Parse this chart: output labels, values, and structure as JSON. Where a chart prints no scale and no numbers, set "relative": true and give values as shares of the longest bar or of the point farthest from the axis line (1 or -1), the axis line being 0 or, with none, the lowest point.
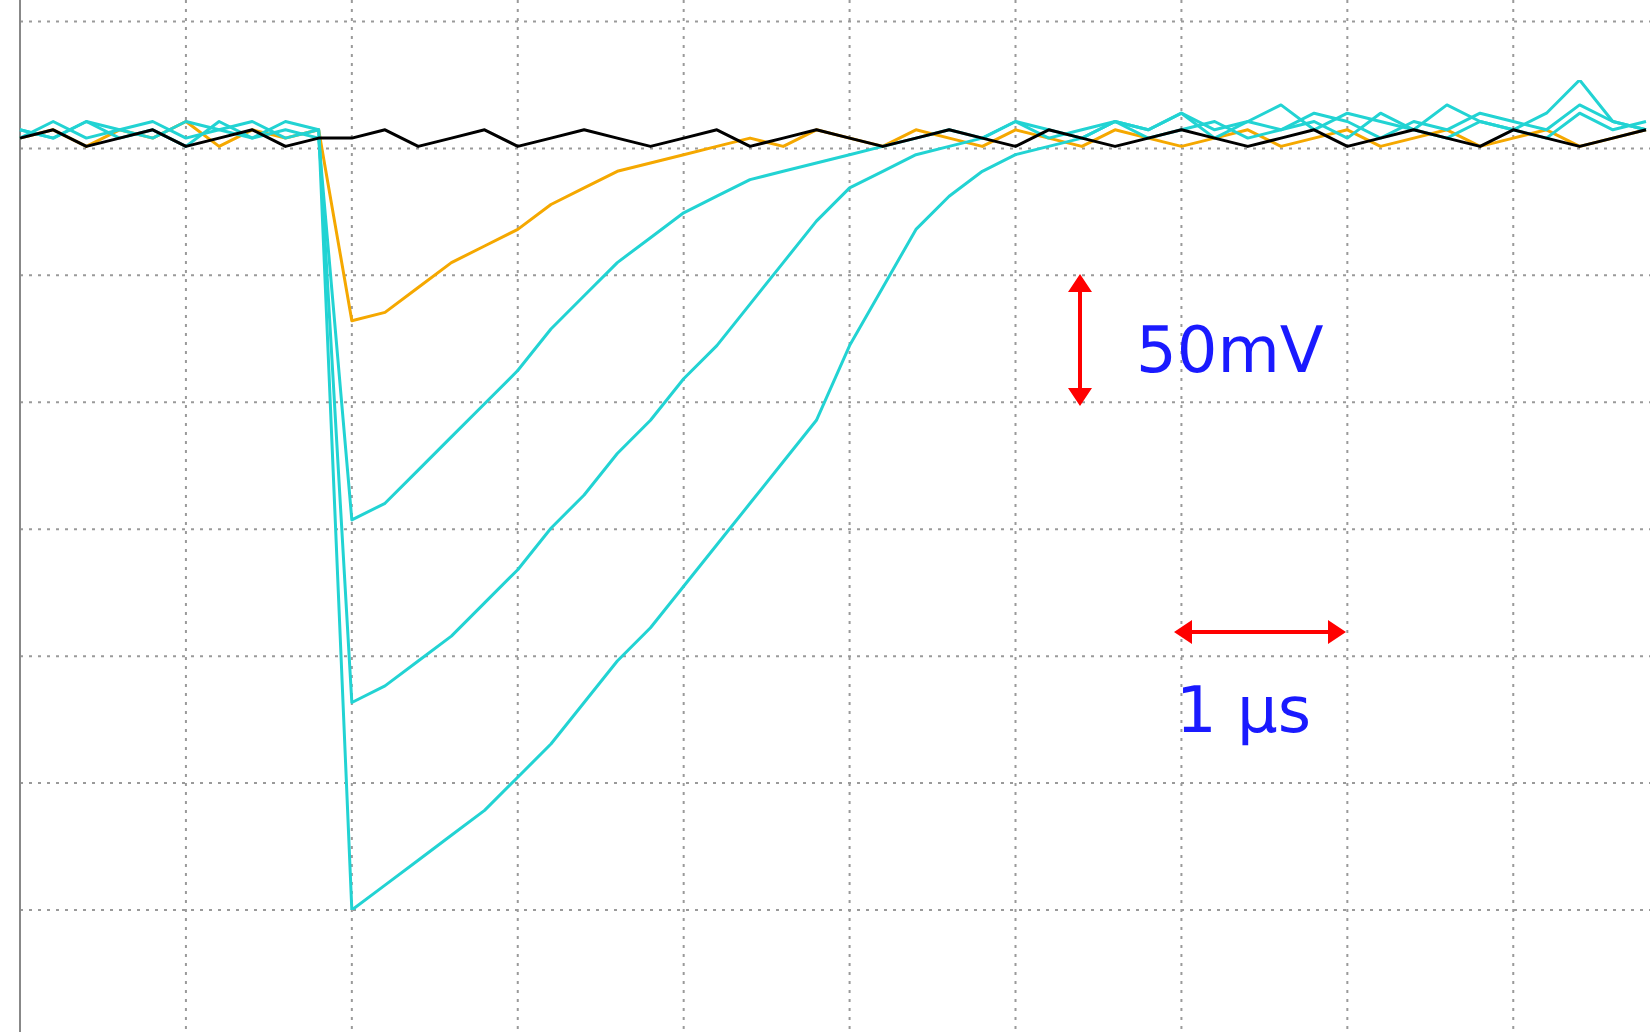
{
  "chart_data": {
    "type": "line",
    "relative": true,
    "grid": true,
    "marker": "none",
    "categories": [
      null,
      null,
      null,
      null,
      null,
      null,
      null,
      null,
      null,
      null,
      null,
      null,
      null,
      null,
      null,
      null,
      null,
      null,
      null,
      null,
      null,
      null,
      null,
      null,
      null,
      null,
      null,
      null,
      null,
      null,
      null,
      null,
      null,
      null,
      null,
      null,
      null,
      null,
      null,
      null,
      null,
      null,
      null,
      null,
      null,
      null,
      null,
      null,
      null,
      null
    ],
    "series": [
      {
        "color": "#f5a800",
        "values": [
          0.93,
          0.94,
          0.92,
          0.94,
          0.93,
          0.95,
          0.92,
          0.94,
          0.93,
          0.94,
          0.71,
          0.72,
          0.75,
          0.78,
          0.8,
          0.82,
          0.85,
          0.87,
          0.89,
          0.9,
          0.91,
          0.92,
          0.93,
          0.92,
          0.94,
          0.93,
          0.92,
          0.94,
          0.93,
          0.92,
          0.94,
          0.93,
          0.92,
          0.94,
          0.93,
          0.92,
          0.93,
          0.94,
          0.92,
          0.93,
          0.94,
          0.92,
          0.93,
          0.94,
          0.92,
          0.93,
          0.94,
          0.92,
          0.93,
          0.94
        ]
      },
      {
        "color": "#22d3d3",
        "values": [
          0.94,
          0.93,
          0.95,
          0.93,
          0.94,
          0.92,
          0.95,
          0.93,
          0.94,
          0.93,
          0.47,
          0.49,
          0.53,
          0.57,
          0.61,
          0.65,
          0.7,
          0.74,
          0.78,
          0.81,
          0.84,
          0.86,
          0.88,
          0.89,
          0.9,
          0.91,
          0.92,
          0.93,
          0.94,
          0.93,
          0.95,
          0.93,
          0.94,
          0.95,
          0.93,
          0.94,
          0.95,
          0.93,
          0.94,
          0.95,
          0.93,
          0.96,
          0.94,
          0.93,
          0.95,
          0.94,
          0.93,
          0.96,
          0.94,
          0.95
        ]
      },
      {
        "color": "#22d3d3",
        "values": [
          0.93,
          0.95,
          0.93,
          0.94,
          0.95,
          0.93,
          0.94,
          0.95,
          0.93,
          0.94,
          0.25,
          0.27,
          0.3,
          0.33,
          0.37,
          0.41,
          0.46,
          0.5,
          0.55,
          0.59,
          0.64,
          0.68,
          0.73,
          0.78,
          0.83,
          0.87,
          0.89,
          0.91,
          0.92,
          0.93,
          0.95,
          0.94,
          0.93,
          0.95,
          0.94,
          0.96,
          0.93,
          0.95,
          0.94,
          0.96,
          0.95,
          0.93,
          0.95,
          0.94,
          0.96,
          0.95,
          0.94,
          0.97,
          0.95,
          0.94
        ]
      },
      {
        "color": "#22d3d3",
        "values": [
          0.94,
          0.93,
          0.95,
          0.94,
          0.93,
          0.95,
          0.94,
          0.93,
          0.95,
          0.94,
          0.0,
          0.03,
          0.06,
          0.09,
          0.12,
          0.16,
          0.2,
          0.25,
          0.3,
          0.34,
          0.39,
          0.44,
          0.49,
          0.54,
          0.59,
          0.68,
          0.75,
          0.82,
          0.86,
          0.89,
          0.91,
          0.92,
          0.93,
          0.95,
          0.94,
          0.96,
          0.94,
          0.95,
          0.97,
          0.94,
          0.96,
          0.95,
          0.94,
          0.97,
          0.95,
          0.94,
          0.96,
          1,
          0.95,
          0.94
        ]
      },
      {
        "color": "#000000",
        "values": [
          0.93,
          0.94,
          0.92,
          0.93,
          0.94,
          0.92,
          0.93,
          0.94,
          0.92,
          0.93,
          0.93,
          0.94,
          0.92,
          0.93,
          0.94,
          0.92,
          0.93,
          0.94,
          0.93,
          0.92,
          0.93,
          0.94,
          0.92,
          0.93,
          0.94,
          0.93,
          0.92,
          0.93,
          0.94,
          0.93,
          0.92,
          0.94,
          0.93,
          0.92,
          0.93,
          0.94,
          0.93,
          0.92,
          0.93,
          0.94,
          0.92,
          0.93,
          0.94,
          0.93,
          0.92,
          0.94,
          0.93,
          0.92,
          0.93,
          0.94
        ]
      }
    ],
    "annotations": [
      "50mV",
      "1 µs"
    ]
  }
}
